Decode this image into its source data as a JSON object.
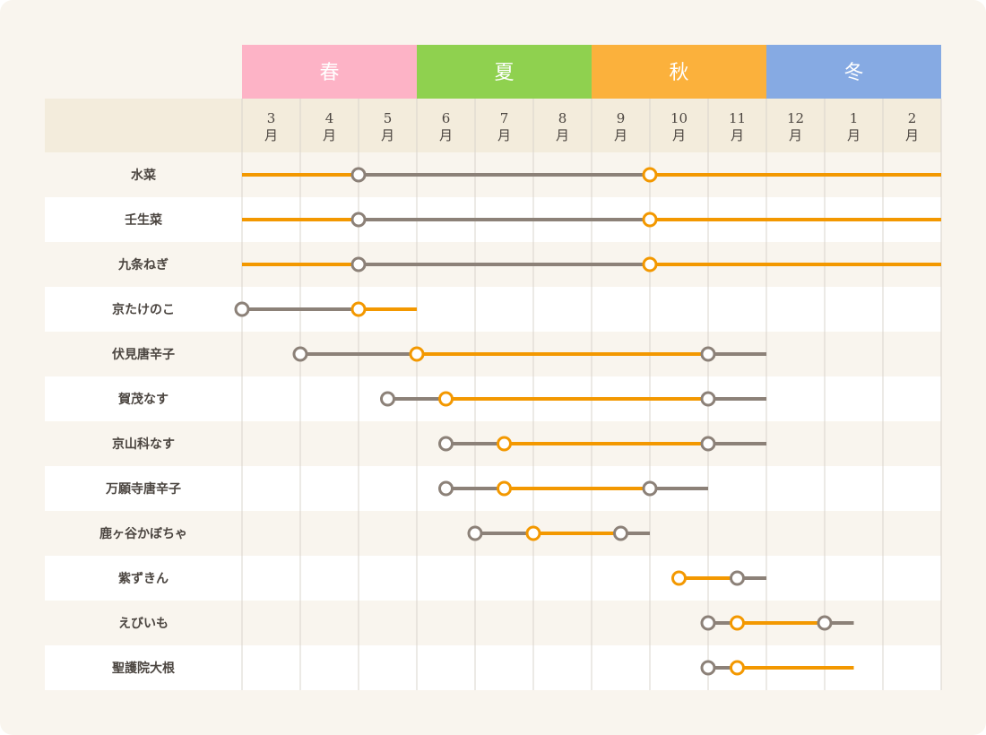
{
  "chart_data": {
    "type": "timeline",
    "seasons": [
      {
        "name": "春",
        "color": "#fdb3c6"
      },
      {
        "name": "夏",
        "color": "#8fd14f"
      },
      {
        "name": "秋",
        "color": "#fbb13c"
      },
      {
        "name": "冬",
        "color": "#86aae3"
      }
    ],
    "months": [
      {
        "num": "3",
        "unit": "月"
      },
      {
        "num": "4",
        "unit": "月"
      },
      {
        "num": "5",
        "unit": "月"
      },
      {
        "num": "6",
        "unit": "月"
      },
      {
        "num": "7",
        "unit": "月"
      },
      {
        "num": "8",
        "unit": "月"
      },
      {
        "num": "9",
        "unit": "月"
      },
      {
        "num": "10",
        "unit": "月"
      },
      {
        "num": "11",
        "unit": "月"
      },
      {
        "num": "12",
        "unit": "月"
      },
      {
        "num": "1",
        "unit": "月"
      },
      {
        "num": "2",
        "unit": "月"
      }
    ],
    "colors": {
      "active": "#f39800",
      "inactive": "#8c8178",
      "row_alt": "#f9f5ee",
      "row_base": "#ffffff",
      "header_bg": "#f3ecdc",
      "grid": "#d9d4cc"
    },
    "series": [
      {
        "name": "水菜",
        "segments": [
          {
            "start": 3.0,
            "end": 5.0,
            "status": "active"
          },
          {
            "start": 5.0,
            "end": 10.0,
            "status": "inactive"
          },
          {
            "start": 10.0,
            "end": 15.0,
            "status": "active"
          }
        ],
        "markers": [
          {
            "x": 5.0,
            "status": "inactive"
          },
          {
            "x": 10.0,
            "status": "active"
          }
        ]
      },
      {
        "name": "壬生菜",
        "segments": [
          {
            "start": 3.0,
            "end": 5.0,
            "status": "active"
          },
          {
            "start": 5.0,
            "end": 10.0,
            "status": "inactive"
          },
          {
            "start": 10.0,
            "end": 15.0,
            "status": "active"
          }
        ],
        "markers": [
          {
            "x": 5.0,
            "status": "inactive"
          },
          {
            "x": 10.0,
            "status": "active"
          }
        ]
      },
      {
        "name": "九条ねぎ",
        "segments": [
          {
            "start": 3.0,
            "end": 5.0,
            "status": "active"
          },
          {
            "start": 5.0,
            "end": 10.0,
            "status": "inactive"
          },
          {
            "start": 10.0,
            "end": 15.0,
            "status": "active"
          }
        ],
        "markers": [
          {
            "x": 5.0,
            "status": "inactive"
          },
          {
            "x": 10.0,
            "status": "active"
          }
        ]
      },
      {
        "name": "京たけのこ",
        "segments": [
          {
            "start": 3.0,
            "end": 5.0,
            "status": "inactive"
          },
          {
            "start": 5.0,
            "end": 6.0,
            "status": "active"
          }
        ],
        "markers": [
          {
            "x": 3.0,
            "status": "inactive"
          },
          {
            "x": 5.0,
            "status": "active"
          }
        ]
      },
      {
        "name": "伏見唐辛子",
        "segments": [
          {
            "start": 4.0,
            "end": 6.0,
            "status": "inactive"
          },
          {
            "start": 6.0,
            "end": 11.0,
            "status": "active"
          },
          {
            "start": 11.0,
            "end": 12.0,
            "status": "inactive"
          }
        ],
        "markers": [
          {
            "x": 4.0,
            "status": "inactive"
          },
          {
            "x": 6.0,
            "status": "active"
          },
          {
            "x": 11.0,
            "status": "inactive"
          }
        ]
      },
      {
        "name": "賀茂なす",
        "segments": [
          {
            "start": 5.5,
            "end": 6.5,
            "status": "inactive"
          },
          {
            "start": 6.5,
            "end": 11.0,
            "status": "active"
          },
          {
            "start": 11.0,
            "end": 12.0,
            "status": "inactive"
          }
        ],
        "markers": [
          {
            "x": 5.5,
            "status": "inactive"
          },
          {
            "x": 6.5,
            "status": "active"
          },
          {
            "x": 11.0,
            "status": "inactive"
          }
        ]
      },
      {
        "name": "京山科なす",
        "segments": [
          {
            "start": 6.5,
            "end": 7.5,
            "status": "inactive"
          },
          {
            "start": 7.5,
            "end": 11.0,
            "status": "active"
          },
          {
            "start": 11.0,
            "end": 12.0,
            "status": "inactive"
          }
        ],
        "markers": [
          {
            "x": 6.5,
            "status": "inactive"
          },
          {
            "x": 7.5,
            "status": "active"
          },
          {
            "x": 11.0,
            "status": "inactive"
          }
        ]
      },
      {
        "name": "万願寺唐辛子",
        "segments": [
          {
            "start": 6.5,
            "end": 7.5,
            "status": "inactive"
          },
          {
            "start": 7.5,
            "end": 10.0,
            "status": "active"
          },
          {
            "start": 10.0,
            "end": 11.0,
            "status": "inactive"
          }
        ],
        "markers": [
          {
            "x": 6.5,
            "status": "inactive"
          },
          {
            "x": 7.5,
            "status": "active"
          },
          {
            "x": 10.0,
            "status": "inactive"
          }
        ]
      },
      {
        "name": "鹿ヶ谷かぼちゃ",
        "segments": [
          {
            "start": 7.0,
            "end": 8.0,
            "status": "inactive"
          },
          {
            "start": 8.0,
            "end": 9.5,
            "status": "active"
          },
          {
            "start": 9.5,
            "end": 10.0,
            "status": "inactive"
          }
        ],
        "markers": [
          {
            "x": 7.0,
            "status": "inactive"
          },
          {
            "x": 8.0,
            "status": "active"
          },
          {
            "x": 9.5,
            "status": "inactive"
          }
        ]
      },
      {
        "name": "紫ずきん",
        "segments": [
          {
            "start": 10.5,
            "end": 11.5,
            "status": "active"
          },
          {
            "start": 11.5,
            "end": 12.0,
            "status": "inactive"
          }
        ],
        "markers": [
          {
            "x": 10.5,
            "status": "active"
          },
          {
            "x": 11.5,
            "status": "inactive"
          }
        ]
      },
      {
        "name": "えびいも",
        "segments": [
          {
            "start": 11.0,
            "end": 11.5,
            "status": "inactive"
          },
          {
            "start": 11.5,
            "end": 13.0,
            "status": "active"
          },
          {
            "start": 13.0,
            "end": 13.5,
            "status": "inactive"
          }
        ],
        "markers": [
          {
            "x": 11.0,
            "status": "inactive"
          },
          {
            "x": 11.5,
            "status": "active"
          },
          {
            "x": 13.0,
            "status": "inactive"
          }
        ]
      },
      {
        "name": "聖護院大根",
        "segments": [
          {
            "start": 11.0,
            "end": 11.5,
            "status": "inactive"
          },
          {
            "start": 11.5,
            "end": 13.5,
            "status": "active"
          }
        ],
        "markers": [
          {
            "x": 11.0,
            "status": "inactive"
          },
          {
            "x": 11.5,
            "status": "active"
          }
        ]
      }
    ]
  }
}
